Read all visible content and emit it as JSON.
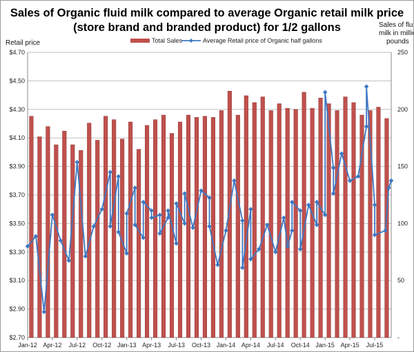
{
  "chart_data": {
    "type": "bar+line",
    "title": "Sales of Organic fluid milk compared to average Organic retail milk price (store brand and branded product) for 1/2 gallons",
    "title_lines": [
      "Sales of Organic fluid milk compared to average Organic retail milk price",
      "(store brand and branded product) for 1/2 gallons"
    ],
    "ylabel_left": "Retail price",
    "ylabel_right_lines": [
      "Sales of fluid",
      "milk in millions",
      "pounds"
    ],
    "legend": {
      "placement": "top",
      "entries": [
        "Total Sales",
        "Average Retail price of Organic half gallons"
      ]
    },
    "grid": true,
    "left_axis": {
      "range": [
        2.7,
        4.7
      ],
      "ticks": [
        "$2.70",
        "$2.90",
        "$3.10",
        "$3.30",
        "$3.50",
        "$3.70",
        "$3.90",
        "$4.10",
        "$4.30",
        "$4.50",
        "$4.70"
      ]
    },
    "right_axis": {
      "range": [
        0,
        250
      ],
      "ticks": [
        "-",
        "50",
        "100",
        "150",
        "200",
        "250"
      ]
    },
    "x_ticks": [
      "Jan-12",
      "Apr-12",
      "Jul-12",
      "Oct-12",
      "Jan-13",
      "Apr-13",
      "Jul-13",
      "Oct-13",
      "Jan-14",
      "Apr-14",
      "Jul-14",
      "Oct-14",
      "Jan-15",
      "Apr-15",
      "Jul-15"
    ],
    "x_range": [
      "2012-01-01",
      "2015-09-01"
    ],
    "colors": {
      "bars": "#C0504D",
      "bar_border": "#8C3836",
      "line": "#3C78C3",
      "grid": "#BFBFBF"
    },
    "series": [
      {
        "name": "Total Sales",
        "axis": "right",
        "type": "bar",
        "months": [
          "2012-01",
          "2012-02",
          "2012-03",
          "2012-04",
          "2012-05",
          "2012-06",
          "2012-07",
          "2012-08",
          "2012-09",
          "2012-10",
          "2012-11",
          "2012-12",
          "2013-01",
          "2013-02",
          "2013-03",
          "2013-04",
          "2013-05",
          "2013-06",
          "2013-07",
          "2013-08",
          "2013-09",
          "2013-10",
          "2013-11",
          "2013-12",
          "2014-01",
          "2014-02",
          "2014-03",
          "2014-04",
          "2014-05",
          "2014-06",
          "2014-07",
          "2014-08",
          "2014-09",
          "2014-10",
          "2014-11",
          "2014-12",
          "2015-01",
          "2015-02",
          "2015-03",
          "2015-04",
          "2015-05",
          "2015-06",
          "2015-07",
          "2015-08"
        ],
        "values": [
          194,
          176,
          185,
          169,
          181,
          169,
          164,
          188,
          173,
          194,
          191,
          174,
          189,
          165,
          186,
          191,
          195,
          179,
          189,
          195,
          193,
          194,
          193,
          199,
          216,
          195,
          212,
          206,
          211,
          199,
          205,
          201,
          200,
          215,
          201,
          210,
          205,
          199,
          211,
          206,
          195,
          199,
          202,
          192
        ]
      },
      {
        "name": "Average Retail price of Organic half gallons",
        "axis": "left",
        "type": "line",
        "points": [
          [
            "2012-01-01",
            3.34
          ],
          [
            "2012-02-01",
            3.41
          ],
          [
            "2012-03-01",
            2.88
          ],
          [
            "2012-04-01",
            3.56
          ],
          [
            "2012-05-01",
            3.38
          ],
          [
            "2012-06-01",
            3.24
          ],
          [
            "2012-07-01",
            3.93
          ],
          [
            "2012-08-01",
            3.27
          ],
          [
            "2012-09-01",
            3.48
          ],
          [
            "2012-10-01",
            3.6
          ],
          [
            "2012-11-01",
            3.86
          ],
          [
            "2012-11-01",
            3.48
          ],
          [
            "2012-12-01",
            3.83
          ],
          [
            "2012-12-01",
            3.44
          ],
          [
            "2013-01-01",
            3.29
          ],
          [
            "2013-01-01",
            3.57
          ],
          [
            "2013-02-01",
            3.75
          ],
          [
            "2013-02-01",
            3.49
          ],
          [
            "2013-03-01",
            3.4
          ],
          [
            "2013-03-01",
            3.65
          ],
          [
            "2013-04-01",
            3.59
          ],
          [
            "2013-04-01",
            3.54
          ],
          [
            "2013-05-01",
            3.56
          ],
          [
            "2013-05-01",
            3.43
          ],
          [
            "2013-06-01",
            3.54
          ],
          [
            "2013-06-01",
            3.59
          ],
          [
            "2013-07-01",
            3.36
          ],
          [
            "2013-07-01",
            3.64
          ],
          [
            "2013-08-01",
            3.5
          ],
          [
            "2013-08-01",
            3.71
          ],
          [
            "2013-09-01",
            3.47
          ],
          [
            "2013-10-01",
            3.73
          ],
          [
            "2013-11-01",
            3.68
          ],
          [
            "2013-11-01",
            3.48
          ],
          [
            "2013-12-01",
            3.21
          ],
          [
            "2014-01-01",
            3.45
          ],
          [
            "2014-02-01",
            3.8
          ],
          [
            "2014-03-01",
            3.52
          ],
          [
            "2014-03-01",
            3.19
          ],
          [
            "2014-04-01",
            3.6
          ],
          [
            "2014-04-01",
            3.25
          ],
          [
            "2014-05-01",
            3.32
          ],
          [
            "2014-06-01",
            3.49
          ],
          [
            "2014-07-01",
            3.3
          ],
          [
            "2014-08-01",
            3.54
          ],
          [
            "2014-08-15",
            3.34
          ],
          [
            "2014-09-01",
            3.45
          ],
          [
            "2014-09-01",
            3.65
          ],
          [
            "2014-10-01",
            3.59
          ],
          [
            "2014-10-01",
            3.32
          ],
          [
            "2014-11-01",
            3.63
          ],
          [
            "2014-12-01",
            3.49
          ],
          [
            "2014-12-01",
            3.65
          ],
          [
            "2015-01-01",
            3.56
          ],
          [
            "2015-01-01",
            4.42
          ],
          [
            "2015-02-01",
            3.89
          ],
          [
            "2015-02-01",
            3.71
          ],
          [
            "2015-03-01",
            3.99
          ],
          [
            "2015-04-01",
            3.8
          ],
          [
            "2015-05-01",
            3.83
          ],
          [
            "2015-06-01",
            4.18
          ],
          [
            "2015-06-01",
            4.46
          ],
          [
            "2015-07-01",
            3.63
          ],
          [
            "2015-07-01",
            3.42
          ],
          [
            "2015-08-10",
            3.45
          ],
          [
            "2015-08-22",
            3.75
          ],
          [
            "2015-09-01",
            3.8
          ]
        ]
      }
    ]
  }
}
